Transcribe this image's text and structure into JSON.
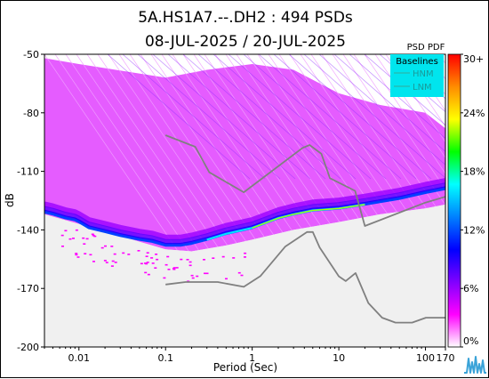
{
  "chart_data": {
    "type": "heatmap",
    "title_line1": "5A.HS1A7.--.DH2 : 494 PSDs",
    "title_line2": "08-JUL-2025 / 20-JUL-2025",
    "xlabel": "Period (Sec)",
    "ylabel": "dB",
    "xscale": "log",
    "xlim": [
      0.004,
      170
    ],
    "ylim": [
      -200,
      -50
    ],
    "x_ticks": [
      {
        "value": 0.01,
        "label": "0.01"
      },
      {
        "value": 0.1,
        "label": "0.1"
      },
      {
        "value": 1,
        "label": "1"
      },
      {
        "value": 10,
        "label": "10"
      },
      {
        "value": 100,
        "label": "100"
      },
      {
        "value": 170,
        "label": "170"
      }
    ],
    "y_ticks": [
      {
        "value": -50,
        "label": "-50"
      },
      {
        "value": -80,
        "label": "-80"
      },
      {
        "value": -110,
        "label": "-110"
      },
      {
        "value": -140,
        "label": "-140"
      },
      {
        "value": -170,
        "label": "-170"
      },
      {
        "value": -200,
        "label": "-200"
      }
    ],
    "colorbar": {
      "title": "PSD PDF",
      "ticks": [
        "30+",
        "24%",
        "18%",
        "12%",
        "6%",
        "0%"
      ],
      "tick_values": [
        30,
        24,
        18,
        12,
        6,
        0
      ],
      "colors": [
        "#ff0000",
        "#ff8c00",
        "#ffff00",
        "#00ff00",
        "#00ffff",
        "#0080ff",
        "#0000ff",
        "#8000ff",
        "#ff00ff",
        "#ffffff"
      ]
    },
    "legend": {
      "title": "Baselines",
      "placement": "top-right",
      "entries": [
        "HNM",
        "LNM"
      ],
      "background": "#00e5ee"
    },
    "pdf_peak_curve": [
      [
        0.004,
        -131
      ],
      [
        0.005,
        -132
      ],
      [
        0.007,
        -134
      ],
      [
        0.009,
        -135
      ],
      [
        0.01,
        -136
      ],
      [
        0.013,
        -139
      ],
      [
        0.02,
        -141
      ],
      [
        0.03,
        -143
      ],
      [
        0.05,
        -145
      ],
      [
        0.07,
        -146
      ],
      [
        0.1,
        -148
      ],
      [
        0.15,
        -148
      ],
      [
        0.2,
        -147
      ],
      [
        0.3,
        -145
      ],
      [
        0.5,
        -142
      ],
      [
        1,
        -139
      ],
      [
        2,
        -134
      ],
      [
        3,
        -132
      ],
      [
        5,
        -130
      ],
      [
        10,
        -129
      ],
      [
        20,
        -127
      ],
      [
        50,
        -124
      ],
      [
        100,
        -121
      ],
      [
        170,
        -119
      ]
    ],
    "pdf_band_upper": [
      [
        0.004,
        -52
      ],
      [
        0.01,
        -55
      ],
      [
        0.1,
        -62
      ],
      [
        0.3,
        -58
      ],
      [
        1,
        -55
      ],
      [
        3,
        -58
      ],
      [
        10,
        -70
      ],
      [
        30,
        -76
      ],
      [
        100,
        -80
      ],
      [
        170,
        -88
      ]
    ],
    "pdf_band_lower": [
      [
        0.004,
        -132
      ],
      [
        0.01,
        -137
      ],
      [
        0.1,
        -150
      ],
      [
        0.2,
        -151
      ],
      [
        0.5,
        -148
      ],
      [
        1,
        -145
      ],
      [
        3,
        -140
      ],
      [
        10,
        -136
      ],
      [
        30,
        -132
      ],
      [
        100,
        -129
      ],
      [
        170,
        -127
      ]
    ],
    "hnm": [
      [
        0.1,
        -91.5
      ],
      [
        0.22,
        -97.4
      ],
      [
        0.32,
        -110.5
      ],
      [
        0.8,
        -120.7
      ],
      [
        3.8,
        -98.0
      ],
      [
        4.6,
        -96.5
      ],
      [
        6.3,
        -101.0
      ],
      [
        7.9,
        -113.5
      ],
      [
        15.4,
        -120.0
      ],
      [
        20,
        -138.0
      ],
      [
        100,
        -126.0
      ],
      [
        170,
        -123.0
      ]
    ],
    "lnm": [
      [
        0.1,
        -168.0
      ],
      [
        0.17,
        -166.7
      ],
      [
        0.4,
        -166.7
      ],
      [
        0.8,
        -169.2
      ],
      [
        1.24,
        -163.7
      ],
      [
        2.4,
        -148.6
      ],
      [
        4.3,
        -141.1
      ],
      [
        5.0,
        -141.1
      ],
      [
        6.0,
        -149.0
      ],
      [
        10.0,
        -163.8
      ],
      [
        12.0,
        -166.2
      ],
      [
        15.6,
        -162.1
      ],
      [
        21.9,
        -177.5
      ],
      [
        31.6,
        -185.0
      ],
      [
        45,
        -187.5
      ],
      [
        70,
        -187.5
      ],
      [
        101,
        -185.0
      ],
      [
        154,
        -185.0
      ],
      [
        170,
        -185.0
      ]
    ],
    "colors": {
      "hnm": "#808080",
      "lnm": "#808080",
      "noise_cloud": "#f0f0f0",
      "scatter": "#ff00ff"
    }
  }
}
